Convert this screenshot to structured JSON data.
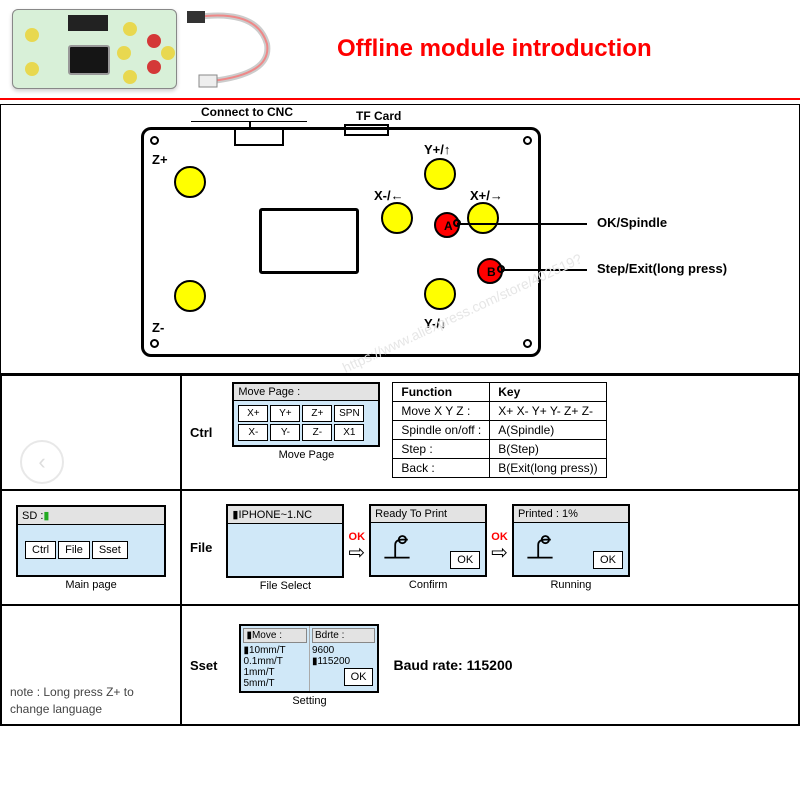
{
  "header": {
    "title": "Offline module introduction"
  },
  "diagram": {
    "connect_label": "Connect to CNC",
    "tf_label": "TF Card",
    "buttons": {
      "z_plus": "Z+",
      "z_minus": "Z-",
      "y_plus": "Y+/↑",
      "y_minus": "Y-/↓",
      "x_plus": "X+/→",
      "x_minus": "X-/←"
    },
    "a": "A",
    "b": "B",
    "callout_ok": "OK/Spindle",
    "callout_step": "Step/Exit(long press)",
    "colors": {
      "yellow": "#ffff00",
      "red": "#ff0000"
    }
  },
  "main_page": {
    "sd": "SD :",
    "btns": [
      "Ctrl",
      "File",
      "Sset"
    ],
    "caption": "Main page"
  },
  "ctrl": {
    "label": "Ctrl",
    "title": "Move Page :",
    "caption": "Move Page",
    "cells": [
      "X+",
      "Y+",
      "Z+",
      "SPN",
      "X-",
      "Y-",
      "Z-",
      "X1"
    ]
  },
  "func_table": {
    "head": [
      "Function",
      "Key"
    ],
    "rows": [
      [
        "Move X Y Z :",
        "X+  X-  Y+  Y-  Z+  Z-"
      ],
      [
        "Spindle on/off :",
        "A(Spindle)"
      ],
      [
        "Step :",
        "B(Step)"
      ],
      [
        "Back :",
        "B(Exit(long press))"
      ]
    ]
  },
  "file": {
    "label": "File",
    "select_title": "▮IPHONE~1.NC",
    "select_caption": "File Select",
    "ok": "OK",
    "confirm_title": "Ready To Print",
    "confirm_caption": "Confirm",
    "running_title": "Printed : 1%",
    "running_caption": "Running",
    "ok_btn": "OK"
  },
  "sset": {
    "label": "Sset",
    "move_hdr": "▮Move :",
    "bd_hdr": "Bdrte :",
    "moves": [
      "▮10mm/T",
      "0.1mm/T",
      "1mm/T",
      "5mm/T"
    ],
    "bauds": [
      "9600",
      "▮115200"
    ],
    "ok": "OK",
    "caption": "Setting",
    "baud_text": "Baud rate: 115200"
  },
  "note": "note : Long press Z+ to change language",
  "watermark": "https://www.aliexpress.com/store/402519?"
}
